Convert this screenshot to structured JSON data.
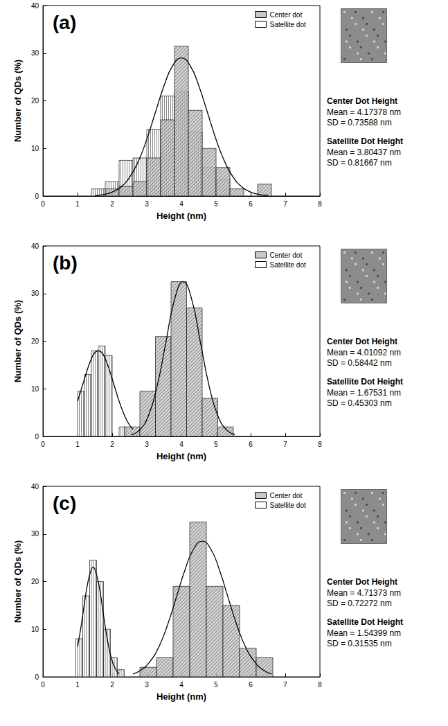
{
  "chart_data": [
    {
      "type": "histogram",
      "title": "(a)",
      "x_label": "Height (nm)",
      "y_label": "Number of QDs (%)",
      "xlim": [
        0,
        8
      ],
      "xticks": [
        0,
        1,
        2,
        3,
        4,
        5,
        6,
        7,
        8
      ],
      "ylim": [
        0,
        40
      ],
      "yticks": [
        0,
        10,
        20,
        30,
        40
      ],
      "grid": false,
      "legend": "upper right",
      "series": [
        {
          "name": "Center dot",
          "color": "#c8c8c8",
          "bins": [
            1.8,
            2.2,
            2.6,
            3.0,
            3.4,
            3.8,
            4.2,
            4.6,
            5.0,
            5.4,
            5.8,
            6.2,
            6.6
          ],
          "values": [
            1.5,
            2,
            3,
            8,
            16,
            31.5,
            18,
            10,
            6,
            1.5,
            0,
            2.5
          ]
        },
        {
          "name": "Satellite dot",
          "color": "#ffffff",
          "bins": [
            1.4,
            1.8,
            2.2,
            2.6,
            3.0,
            3.4,
            3.8,
            4.2,
            4.6,
            5.0,
            5.4
          ],
          "values": [
            1.5,
            3,
            7.5,
            8,
            14,
            21,
            22,
            13.5,
            6,
            3.5
          ]
        }
      ],
      "fits": [
        {
          "x": [
            1.5,
            1.75,
            2.0,
            2.25,
            2.5,
            2.75,
            3.0,
            3.25,
            3.5,
            3.75,
            4.0,
            4.25,
            4.5,
            4.75,
            5.0,
            5.25,
            5.5,
            5.75,
            6.0,
            6.25,
            6.5
          ],
          "values": [
            0.11,
            0.32,
            0.83,
            1.9,
            3.9,
            7.2,
            11.9,
            17.6,
            23.2,
            27.4,
            29,
            27.4,
            23.2,
            17.6,
            11.9,
            7.2,
            3.9,
            1.9,
            0.83,
            0.32,
            0.11
          ],
          "color": "#000000",
          "line_style": "solid"
        }
      ],
      "annotations": [
        {
          "heading": "Center Dot Height",
          "lines": [
            "Mean = 4.17378 nm",
            "SD = 0.73588 nm"
          ]
        },
        {
          "heading": "Satellite Dot Height",
          "lines": [
            "Mean = 3.80437 nm",
            "SD = 0.81667 nm"
          ]
        }
      ]
    },
    {
      "type": "histogram",
      "title": "(b)",
      "x_label": "Height (nm)",
      "y_label": "Number of QDs (%)",
      "xlim": [
        0,
        8
      ],
      "xticks": [
        0,
        1,
        2,
        3,
        4,
        5,
        6,
        7,
        8
      ],
      "ylim": [
        0,
        40
      ],
      "yticks": [
        0,
        10,
        20,
        30,
        40
      ],
      "grid": false,
      "legend": "upper right",
      "series": [
        {
          "name": "Center dot",
          "color": "#c8c8c8",
          "bins": [
            2.35,
            2.8,
            3.25,
            3.7,
            4.15,
            4.6,
            5.05,
            5.5
          ],
          "values": [
            2,
            9.5,
            21,
            32.5,
            27,
            8,
            2
          ]
        },
        {
          "name": "Satellite dot",
          "color": "#ffffff",
          "bins": [
            1.0,
            1.2,
            1.4,
            1.6,
            1.8,
            2.0,
            2.2,
            2.4
          ],
          "values": [
            9.5,
            13,
            18,
            19,
            17,
            0,
            2
          ]
        }
      ],
      "fits": [
        {
          "x": [
            1.0,
            1.1,
            1.2,
            1.3,
            1.4,
            1.5,
            1.6,
            1.7,
            1.8,
            1.9,
            2.0,
            2.1,
            2.2,
            2.3,
            2.4,
            2.5,
            2.6
          ],
          "values": [
            7.4,
            9.7,
            12.1,
            14.4,
            16.3,
            17.6,
            18,
            17.6,
            16.3,
            14.4,
            12.1,
            9.7,
            7.4,
            5.4,
            3.7,
            2.4,
            1.5
          ],
          "color": "#000000",
          "line_style": "solid"
        },
        {
          "x": [
            2.55,
            2.8,
            3.05,
            3.3,
            3.55,
            3.8,
            4.05,
            4.3,
            4.55,
            4.8,
            5.05,
            5.3,
            5.55
          ],
          "values": [
            0.36,
            1.4,
            4.4,
            10.6,
            19.7,
            28.7,
            32.5,
            28.7,
            19.7,
            10.6,
            4.4,
            1.4,
            0.36
          ],
          "color": "#000000",
          "line_style": "solid"
        }
      ],
      "annotations": [
        {
          "heading": "Center Dot Height",
          "lines": [
            "Mean = 4.01092 nm",
            "SD = 0.58442 nm"
          ]
        },
        {
          "heading": "Satellite Dot Height",
          "lines": [
            "Mean = 1.67531 nm",
            "SD = 0.45303 nm"
          ]
        }
      ]
    },
    {
      "type": "histogram",
      "title": "(c)",
      "x_label": "Height (nm)",
      "y_label": "Number of QDs (%)",
      "xlim": [
        0,
        8
      ],
      "xticks": [
        0,
        1,
        2,
        3,
        4,
        5,
        6,
        7,
        8
      ],
      "ylim": [
        0,
        40
      ],
      "yticks": [
        0,
        10,
        20,
        30,
        40
      ],
      "grid": false,
      "legend": "upper right",
      "series": [
        {
          "name": "Center dot",
          "color": "#c8c8c8",
          "bins": [
            2.8,
            3.28,
            3.76,
            4.24,
            4.72,
            5.2,
            5.68,
            6.16,
            6.64
          ],
          "values": [
            2,
            4,
            19,
            32.5,
            19,
            15,
            6,
            4
          ]
        },
        {
          "name": "Satellite dot",
          "color": "#ffffff",
          "bins": [
            0.95,
            1.15,
            1.35,
            1.55,
            1.75,
            1.95,
            2.15,
            2.35
          ],
          "values": [
            8,
            17,
            24.5,
            20,
            10,
            4,
            1.5
          ]
        }
      ],
      "fits": [
        {
          "x": [
            1.0,
            1.1,
            1.2,
            1.3,
            1.4,
            1.45,
            1.5,
            1.6,
            1.7,
            1.8,
            1.9,
            2.0,
            2.1,
            2.2
          ],
          "values": [
            6.3,
            10.5,
            15.5,
            19.9,
            22.6,
            23,
            22.6,
            19.9,
            15.5,
            10.5,
            6.3,
            3.3,
            1.6,
            0.6
          ],
          "color": "#000000",
          "line_style": "solid"
        },
        {
          "x": [
            2.6,
            2.85,
            3.1,
            3.35,
            3.6,
            3.85,
            4.1,
            4.35,
            4.6,
            4.85,
            5.1,
            5.35,
            5.6,
            5.85,
            6.1,
            6.35,
            6.6
          ],
          "values": [
            0.6,
            1.5,
            3.3,
            6.3,
            10.9,
            16.6,
            22.4,
            26.8,
            28.5,
            26.8,
            22.4,
            16.6,
            10.9,
            6.3,
            3.3,
            1.5,
            0.6
          ],
          "color": "#000000",
          "line_style": "solid"
        }
      ],
      "annotations": [
        {
          "heading": "Center Dot Height",
          "lines": [
            "Mean = 4.71373 nm",
            "SD = 0.72272 nm"
          ]
        },
        {
          "heading": "Satellite Dot Height",
          "lines": [
            "Mean = 1.54399 nm",
            "SD = 0.31535 nm"
          ]
        }
      ]
    }
  ]
}
